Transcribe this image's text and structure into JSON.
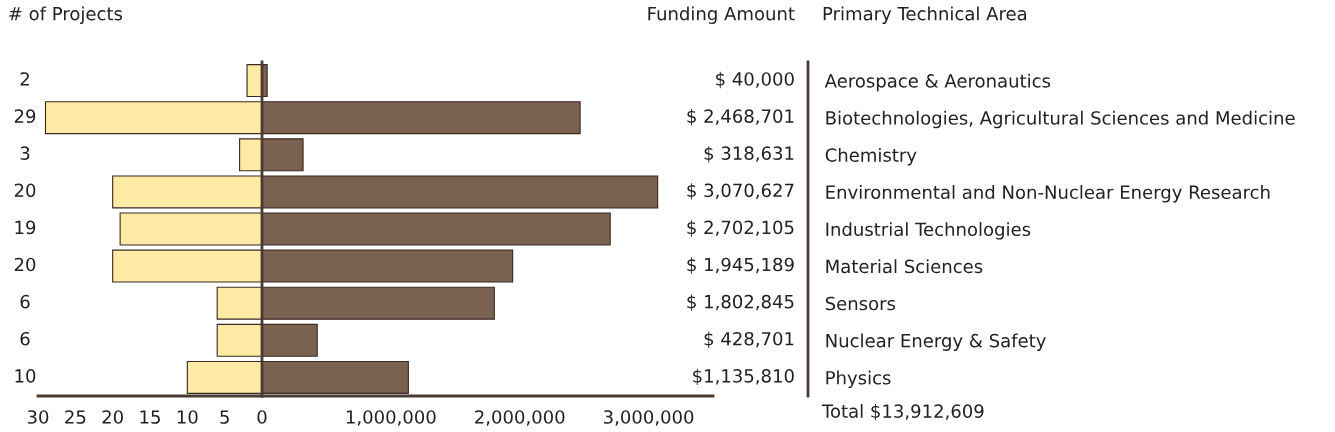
{
  "chart_data": [
    {
      "type": "bar",
      "orientation": "horizontal",
      "xlabel": "# of Projects",
      "values": [
        2,
        29,
        3,
        20,
        19,
        20,
        6,
        6,
        10
      ],
      "color": "#fdeaa4",
      "data_labels": true,
      "xlim": [
        30,
        0
      ],
      "xticks": [
        30,
        25,
        20,
        15,
        10,
        5,
        0
      ],
      "tick_labels": "x",
      "grid": false,
      "legend": false
    },
    {
      "type": "bar",
      "orientation": "horizontal",
      "xlabel": "Funding Amount",
      "ylabel": "Primary Technical Area",
      "categories": [
        "Aerospace & Aeronautics",
        "Biotechnologies, Agricultural Sciences and Medicine",
        "Chemistry",
        "Environmental and Non-Nuclear Energy Research",
        "Industrial Technologies",
        "Material Sciences",
        "Sensors",
        "Nuclear Energy & Safety",
        "Physics"
      ],
      "values": [
        40000,
        2468701,
        318631,
        3070627,
        2702105,
        1945189,
        1802845,
        428701,
        1135810
      ],
      "color": "#7a6150",
      "value_labels": [
        "$ 40,000",
        "$ 2,468,701",
        "$ 318,631",
        "$ 3,070,627",
        "$ 2,702,105",
        "$ 1,945,189",
        "$ 1,802,845",
        "$ 428,701",
        "$1,135,810"
      ],
      "xlim": [
        0,
        3500000
      ],
      "xticks": [
        {
          "value": 1000000,
          "label": "1,000,000"
        },
        {
          "value": 2000000,
          "label": "2,000,000"
        },
        {
          "value": 3000000,
          "label": "3,000,000"
        }
      ],
      "annotations": [
        "Total $13,912,609"
      ],
      "grid": false,
      "legend": false
    }
  ]
}
